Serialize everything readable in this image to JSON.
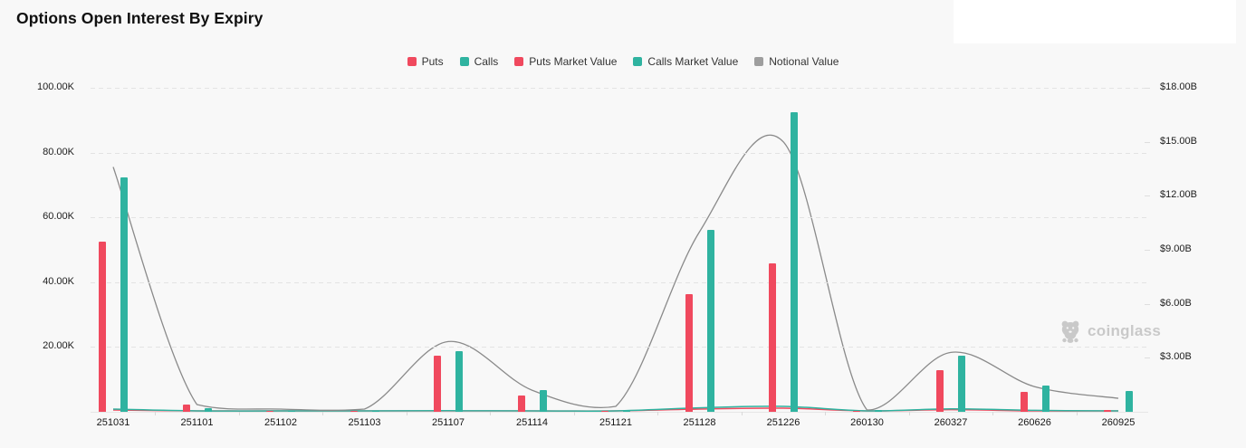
{
  "header": {
    "title": "Options Open Interest By Expiry"
  },
  "legend": {
    "items": [
      {
        "label": "Puts",
        "color": "#f0495e"
      },
      {
        "label": "Calls",
        "color": "#2fb3a0"
      },
      {
        "label": "Puts Market Value",
        "color": "#f0495e"
      },
      {
        "label": "Calls Market Value",
        "color": "#2fb3a0"
      },
      {
        "label": "Notional Value",
        "color": "#9e9e9e"
      }
    ]
  },
  "watermark": {
    "text": "coinglass"
  },
  "colors": {
    "puts": "#f0495e",
    "calls": "#2fb3a0",
    "notional_line": "#8a8a8a",
    "background": "#f8f8f8",
    "grid": "#e3e3e3"
  },
  "chart_data": {
    "type": "bar",
    "subtype": "grouped bars + smoothed lines, dual axis",
    "title": "Options Open Interest By Expiry",
    "categories": [
      "251031",
      "251101",
      "251102",
      "251103",
      "251107",
      "251114",
      "251121",
      "251128",
      "251226",
      "260130",
      "260327",
      "260626",
      "260925"
    ],
    "series": [
      {
        "name": "Puts",
        "type": "bar",
        "axis": "left",
        "unit": "contracts (K)",
        "color": "#f0495e",
        "values": [
          52.5,
          2.3,
          0.3,
          0.3,
          17.3,
          5.0,
          0.4,
          36.3,
          45.8,
          0.4,
          12.8,
          6.1,
          0.6
        ]
      },
      {
        "name": "Calls",
        "type": "bar",
        "axis": "left",
        "unit": "contracts (K)",
        "color": "#2fb3a0",
        "values": [
          72.3,
          1.2,
          0.3,
          0.3,
          18.7,
          6.7,
          0.4,
          56.1,
          92.5,
          0.5,
          17.3,
          8.1,
          6.4
        ]
      },
      {
        "name": "Puts Market Value",
        "type": "line",
        "axis": "right",
        "unit": "$B",
        "color": "#f0495e",
        "values": [
          0.1,
          0.02,
          0.01,
          0.01,
          0.04,
          0.02,
          0.02,
          0.15,
          0.2,
          0.02,
          0.12,
          0.05,
          0.02
        ]
      },
      {
        "name": "Calls Market Value",
        "type": "line",
        "axis": "right",
        "unit": "$B",
        "color": "#2fb3a0",
        "values": [
          0.15,
          0.03,
          0.01,
          0.01,
          0.06,
          0.03,
          0.02,
          0.22,
          0.3,
          0.03,
          0.16,
          0.08,
          0.05
        ]
      },
      {
        "name": "Notional Value",
        "type": "line",
        "axis": "right",
        "unit": "$B",
        "color": "#8a8a8a",
        "values": [
          13.6,
          0.4,
          0.15,
          0.15,
          3.9,
          1.2,
          0.3,
          10.0,
          15.0,
          0.1,
          3.3,
          1.4,
          0.75
        ]
      }
    ],
    "left_axis": {
      "ticks": [
        {
          "label": "100.00K",
          "value": 100
        },
        {
          "label": "80.00K",
          "value": 80
        },
        {
          "label": "60.00K",
          "value": 60
        },
        {
          "label": "40.00K",
          "value": 40
        },
        {
          "label": "20.00K",
          "value": 20
        }
      ],
      "max": 100,
      "min": 0
    },
    "right_axis": {
      "ticks": [
        {
          "label": "$18.00B",
          "value": 18
        },
        {
          "label": "$15.00B",
          "value": 15
        },
        {
          "label": "$12.00B",
          "value": 12
        },
        {
          "label": "$9.00B",
          "value": 9
        },
        {
          "label": "$6.00B",
          "value": 6
        },
        {
          "label": "$3.00B",
          "value": 3
        }
      ],
      "max": 18,
      "min": 0
    },
    "grid": "horizontal dashed",
    "legend_position": "top center"
  }
}
